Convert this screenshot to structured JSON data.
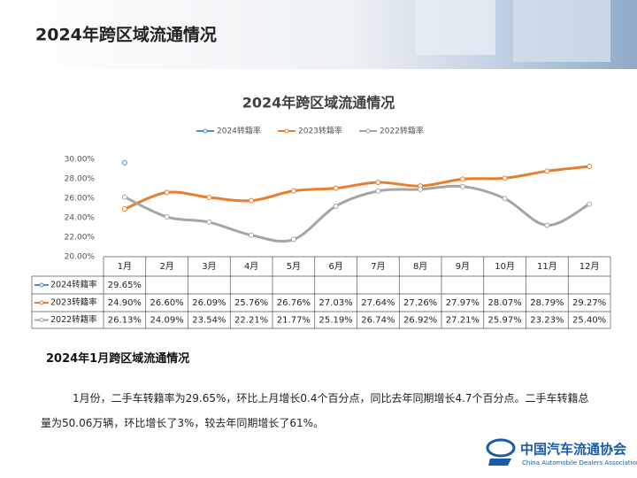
{
  "header": {
    "title": "2024年跨区域流通情况"
  },
  "chart_data": {
    "type": "line",
    "title": "2024年跨区域流通情况",
    "categories": [
      "1月",
      "2月",
      "3月",
      "4月",
      "5月",
      "6月",
      "7月",
      "8月",
      "9月",
      "10月",
      "11月",
      "12月"
    ],
    "series": [
      {
        "name": "2024转籍率",
        "color": "#4f8fc8",
        "values": [
          29.65,
          null,
          null,
          null,
          null,
          null,
          null,
          null,
          null,
          null,
          null,
          null
        ],
        "value_labels": [
          "29.65%",
          null,
          null,
          null,
          null,
          null,
          null,
          null,
          null,
          null,
          null,
          null
        ]
      },
      {
        "name": "2023转籍率",
        "color": "#e87d2e",
        "values": [
          24.9,
          26.6,
          26.09,
          25.76,
          26.76,
          27.03,
          27.64,
          27.26,
          27.97,
          28.07,
          28.79,
          29.27
        ],
        "value_labels": [
          "24.90%",
          "26.60%",
          "26.09%",
          "25.76%",
          "26.76%",
          "27.03%",
          "27.64%",
          "27.26%",
          "27.97%",
          "28.07%",
          "28.79%",
          "29.27%"
        ]
      },
      {
        "name": "2022转籍率",
        "color": "#a5a5a5",
        "values": [
          26.13,
          24.09,
          23.54,
          22.21,
          21.77,
          25.19,
          26.74,
          26.92,
          27.21,
          25.97,
          23.23,
          25.4
        ],
        "value_labels": [
          "26.13%",
          "24.09%",
          "23.54%",
          "22.21%",
          "21.77%",
          "25.19%",
          "26.74%",
          "26.92%",
          "27.21%",
          "25.97%",
          "23.23%",
          "25.40%"
        ]
      }
    ],
    "ylim": [
      20,
      30
    ],
    "yticks": [
      {
        "value": 20,
        "label": "20.00%"
      },
      {
        "value": 22,
        "label": "22.00%"
      },
      {
        "value": 24,
        "label": "24.00%"
      },
      {
        "value": 26,
        "label": "26.00%"
      },
      {
        "value": 28,
        "label": "28.00%"
      },
      {
        "value": 30,
        "label": "30.00%"
      }
    ],
    "legend": "top"
  },
  "section": {
    "title": "2024年1月跨区域流通情况",
    "paragraph": "1月份，二手车转籍率为29.65%，环比上月增长0.4个百分点，同比去年同期增长4.7个百分点。二手车转籍总量为50.06万辆，环比增长了3%，较去年同期增长了61%。"
  },
  "logo": {
    "name": "中国汽车流通协会",
    "subtitle": "China Automobile Dealers Association"
  }
}
